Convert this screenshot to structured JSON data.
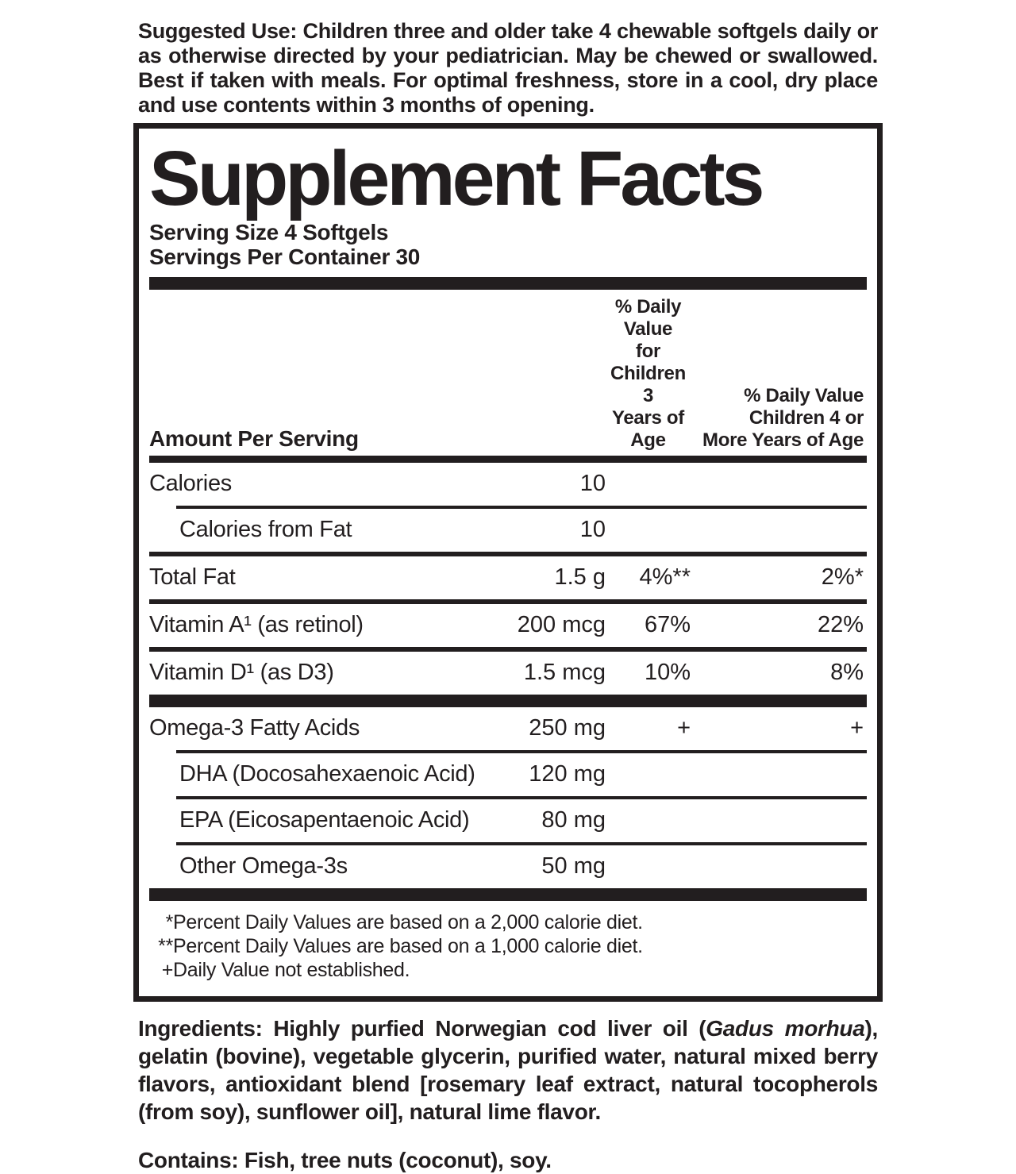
{
  "suggested_use": {
    "label": "Suggested Use:",
    "text": " Children three and older take 4 chewable softgels daily or as otherwise directed by your pediatrician. May be chewed or swallowed. Best if taken with meals. For optimal freshness, store in a cool, dry place and use contents within 3 months of opening."
  },
  "supplement_facts": {
    "title": "Supplement Facts",
    "serving_size": "Serving Size 4 Softgels",
    "servings_per_container": "Servings Per Container 30",
    "header": {
      "amount_col": "Amount Per Serving",
      "dv3_lines": [
        "% Daily Value",
        "for Children 3",
        "Years of Age"
      ],
      "dv4_lines": [
        "% Daily Value",
        "Children 4 or",
        "More Years of Age"
      ]
    },
    "rows": [
      {
        "name": "Calories",
        "amount": "10",
        "dv3": "",
        "dv4": ""
      },
      {
        "name": "Calories from Fat",
        "amount": "10",
        "dv3": "",
        "dv4": ""
      },
      {
        "name": "Total Fat",
        "amount": "1.5 g",
        "dv3": "4%**",
        "dv4": "2%*"
      },
      {
        "name": "Vitamin A¹ (as retinol)",
        "amount": "200 mcg",
        "dv3": "67%",
        "dv4": "22%"
      },
      {
        "name": "Vitamin D¹ (as D3)",
        "amount": "1.5 mcg",
        "dv3": "10%",
        "dv4": "8%"
      },
      {
        "name": "Omega-3 Fatty Acids",
        "amount": "250 mg",
        "dv3": "+",
        "dv4": "+"
      },
      {
        "name": "DHA (Docosahexaenoic Acid)",
        "amount": "120 mg",
        "dv3": "",
        "dv4": ""
      },
      {
        "name": "EPA (Eicosapentaenoic Acid)",
        "amount": "80 mg",
        "dv3": "",
        "dv4": ""
      },
      {
        "name": "Other Omega-3s",
        "amount": "50 mg",
        "dv3": "",
        "dv4": ""
      }
    ],
    "footnotes": [
      {
        "marker": "*",
        "text": "Percent Daily Values are based on a 2,000 calorie diet."
      },
      {
        "marker": "**",
        "text": "Percent Daily Values are based on a 1,000 calorie diet."
      },
      {
        "marker": "+",
        "text": "Daily Value not established."
      }
    ]
  },
  "ingredients": {
    "label": "Ingredients:",
    "text_before_italic": " Highly purfied Norwegian cod liver oil (",
    "italic": "Gadus morhua",
    "text_after_italic": "), gelatin (bovine), vegetable glycerin, purified water, natural mixed berry flavors, antioxidant blend [rosemary leaf extract, natural tocopherols (from soy), sunflower oil], natural lime flavor."
  },
  "contains": {
    "label": "Contains:",
    "text": " Fish, tree nuts (coconut), soy."
  }
}
